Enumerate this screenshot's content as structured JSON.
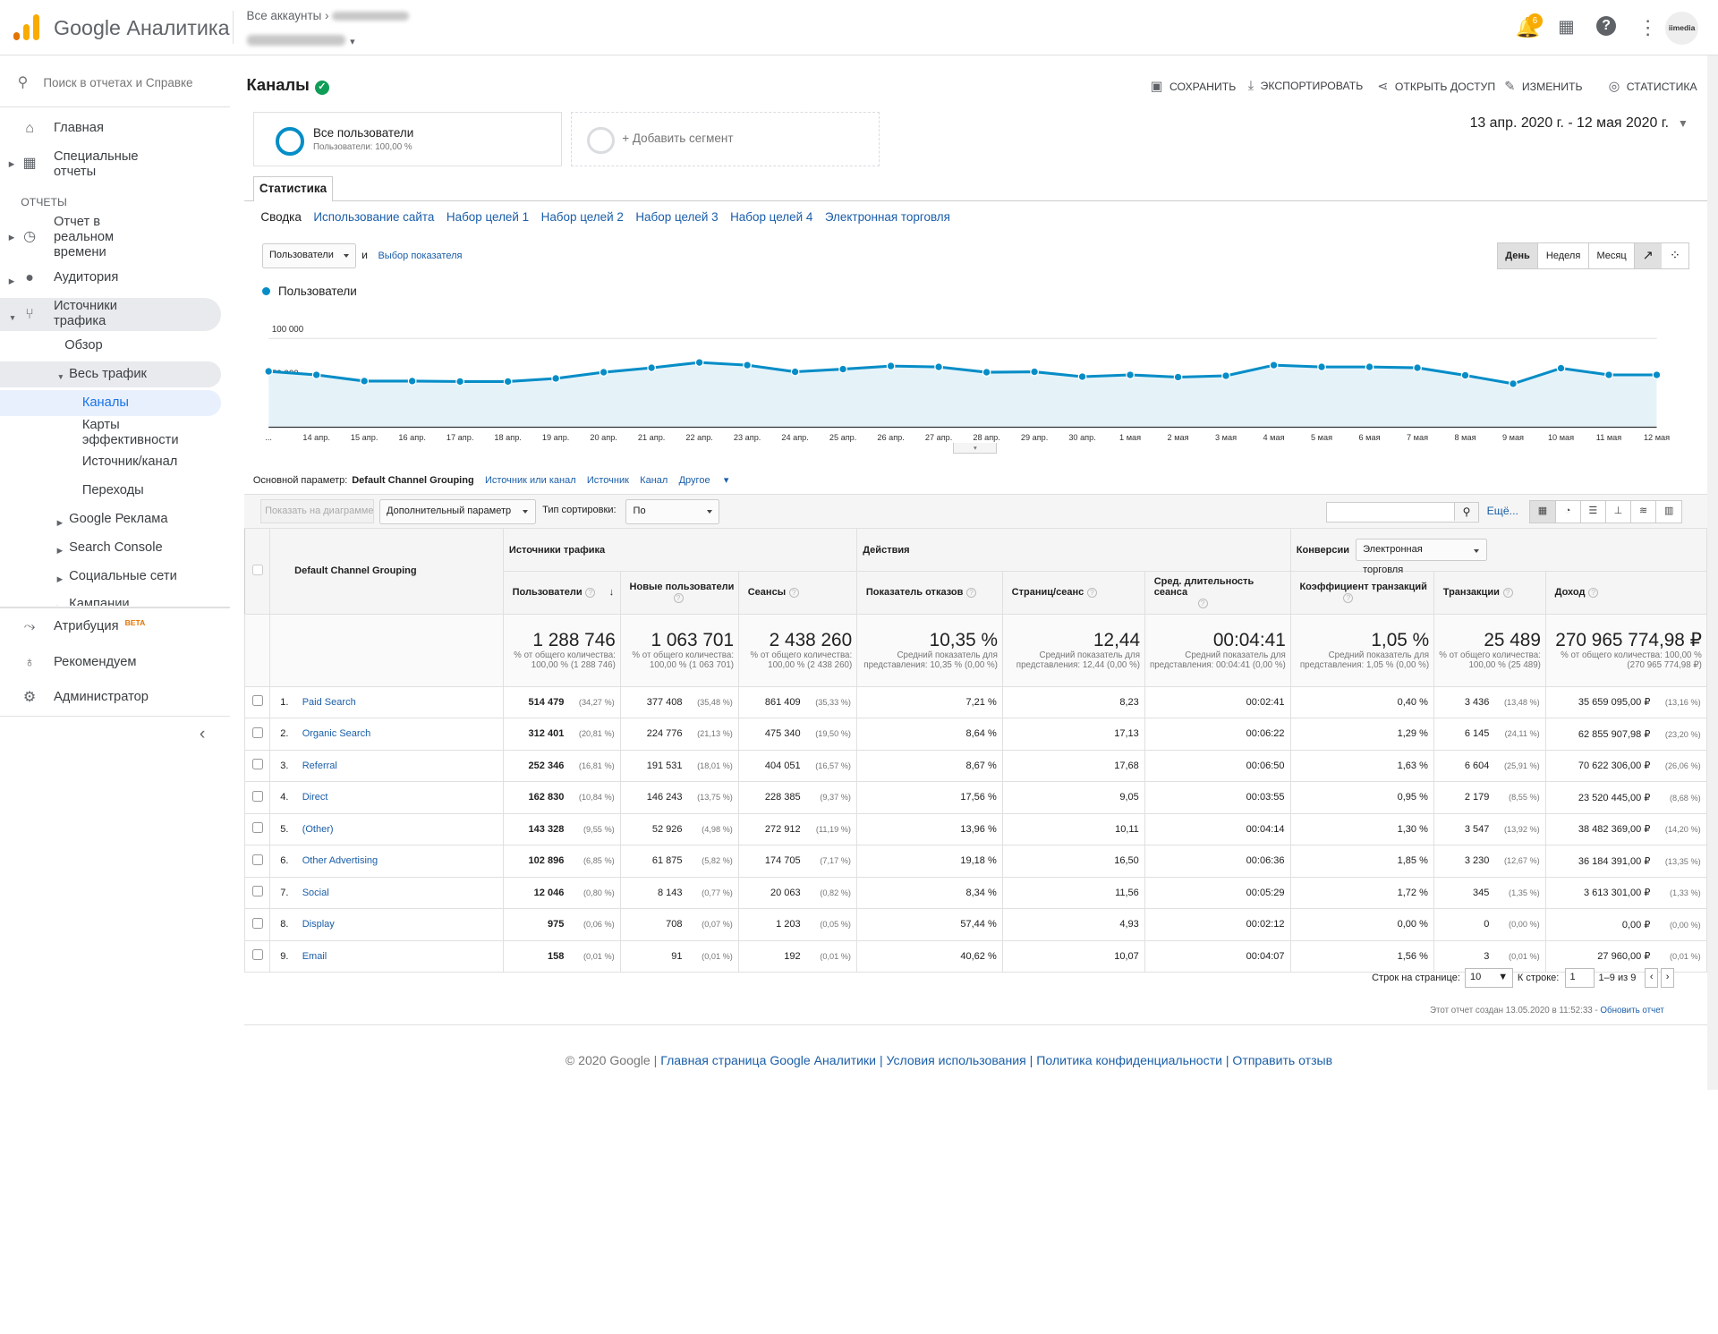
{
  "header": {
    "brand": "Google Аналитика",
    "breadcrumb": "Все аккаунты",
    "notif_count": "6",
    "avatar_text": "iimedia"
  },
  "sidebar": {
    "search_placeholder": "Поиск в отчетах и Справке",
    "reports_label": "ОТЧЕТЫ",
    "items": {
      "home": "Главная",
      "custom": "Специальные\nотчеты",
      "realtime": "Отчет в\nреальном\nвремени",
      "audience": "Аудитория",
      "acquisition": "Источники\nтрафика",
      "overview": "Обзор",
      "all_traffic": "Весь трафик",
      "channels": "Каналы",
      "treemaps": "Карты\nэффективности",
      "source_medium": "Источник/канал",
      "referrals": "Переходы",
      "google_ads": "Google Реклама",
      "search_console": "Search Console",
      "social": "Социальные сети",
      "campaigns": "Кампании",
      "attribution": "Атрибуция",
      "beta": "BETA",
      "discover": "Рекомендуем",
      "admin": "Администратор"
    }
  },
  "page": {
    "title": "Каналы",
    "toolbar": {
      "save": "СОХРАНИТЬ",
      "export": "ЭКСПОРТИРОВАТЬ",
      "share": "ОТКРЫТЬ ДОСТУП",
      "edit": "ИЗМЕНИТЬ",
      "insights": "СТАТИСТИКА"
    },
    "segment": {
      "name": "Все пользователи",
      "sub": "Пользователи: 100,00 %",
      "add": "+ Добавить сегмент"
    },
    "date_range": "13 апр. 2020 г. - 12 мая 2020 г.",
    "tab": "Статистика",
    "subtabs": [
      "Сводка",
      "Использование сайта",
      "Набор целей 1",
      "Набор целей 2",
      "Набор целей 3",
      "Набор целей 4",
      "Электронная торговля"
    ],
    "metric_dd": "Пользователи",
    "and": "и",
    "select_metric": "Выбор показателя",
    "periods": [
      "День",
      "Неделя",
      "Месяц"
    ],
    "primary_dim_label": "Основной параметр:",
    "primary_dims": [
      "Default Channel Grouping",
      "Источник или канал",
      "Источник",
      "Канал",
      "Другое"
    ],
    "plot_rows": "Показать на диаграмме",
    "secondary_dim": "Дополнительный параметр",
    "sort_type_label": "Тип сортировки:",
    "sort_type": "По умолчанию",
    "more": "Ещё..."
  },
  "chart_data": {
    "type": "area",
    "legend": "Пользователи",
    "yticks": [
      "100 000",
      "50 000"
    ],
    "ylim": [
      0,
      110000
    ],
    "x": [
      "13 апр.",
      "14 апр.",
      "15 апр.",
      "16 апр.",
      "17 апр.",
      "18 апр.",
      "19 апр.",
      "20 апр.",
      "21 апр.",
      "22 апр.",
      "23 апр.",
      "24 апр.",
      "25 апр.",
      "26 апр.",
      "27 апр.",
      "28 апр.",
      "29 апр.",
      "30 апр.",
      "1 мая",
      "2 мая",
      "3 мая",
      "4 мая",
      "5 мая",
      "6 мая",
      "7 мая",
      "8 мая",
      "9 мая",
      "10 мая",
      "11 мая",
      "12 мая"
    ],
    "xlabels": [
      "...",
      "14 апр.",
      "15 апр.",
      "16 апр.",
      "17 апр.",
      "18 апр.",
      "19 апр.",
      "20 апр.",
      "21 апр.",
      "22 апр.",
      "23 апр.",
      "24 апр.",
      "25 апр.",
      "26 апр.",
      "27 апр.",
      "28 апр.",
      "29 апр.",
      "30 апр.",
      "1 мая",
      "2 мая",
      "3 мая",
      "4 мая",
      "5 мая",
      "6 мая",
      "7 мая",
      "8 мая",
      "9 мая",
      "10 мая",
      "11 мая",
      "12 мая"
    ],
    "values": [
      63000,
      59000,
      52000,
      52000,
      51500,
      51500,
      55000,
      62000,
      67000,
      73000,
      70000,
      62500,
      65500,
      69000,
      68000,
      62000,
      62500,
      57000,
      59000,
      56500,
      58000,
      70000,
      68000,
      68000,
      67000,
      58500,
      49000,
      66500,
      59000,
      59000
    ]
  },
  "table": {
    "groups": {
      "acquisition": "Источники трафика",
      "behavior": "Действия",
      "conversions": "Конверсии",
      "conv_dd": "Электронная торговля"
    },
    "dim_header": "Default Channel Grouping",
    "columns": [
      "Пользователи",
      "Новые пользователи",
      "Сеансы",
      "Показатель отказов",
      "Страниц/сеанс",
      "Сред. длительность сеанса",
      "Коэффициент транзакций",
      "Транзакции",
      "Доход"
    ],
    "totals": [
      {
        "v": "1 288 746",
        "s": "% от общего количества: 100,00 % (1 288 746)"
      },
      {
        "v": "1 063 701",
        "s": "% от общего количества: 100,00 % (1 063 701)"
      },
      {
        "v": "2 438 260",
        "s": "% от общего количества: 100,00 % (2 438 260)"
      },
      {
        "v": "10,35 %",
        "s": "Средний показатель для представления: 10,35 % (0,00 %)"
      },
      {
        "v": "12,44",
        "s": "Средний показатель для представления: 12,44 (0,00 %)"
      },
      {
        "v": "00:04:41",
        "s": "Средний показатель для представления: 00:04:41 (0,00 %)"
      },
      {
        "v": "1,05 %",
        "s": "Средний показатель для представления: 1,05 % (0,00 %)"
      },
      {
        "v": "25 489",
        "s": "% от общего количества: 100,00 % (25 489)"
      },
      {
        "v": "270 965 774,98 ₽",
        "s": "% от общего количества: 100,00 % (270 965 774,98 ₽)"
      }
    ],
    "rows": [
      {
        "n": "1.",
        "name": "Paid Search",
        "c": [
          [
            "514 479",
            "(34,27 %)"
          ],
          [
            "377 408",
            "(35,48 %)"
          ],
          [
            "861 409",
            "(35,33 %)"
          ],
          [
            "7,21 %"
          ],
          [
            "8,23"
          ],
          [
            "00:02:41"
          ],
          [
            "0,40 %"
          ],
          [
            "3 436",
            "(13,48 %)"
          ],
          [
            "35 659 095,00 ₽",
            "(13,16 %)"
          ]
        ]
      },
      {
        "n": "2.",
        "name": "Organic Search",
        "c": [
          [
            "312 401",
            "(20,81 %)"
          ],
          [
            "224 776",
            "(21,13 %)"
          ],
          [
            "475 340",
            "(19,50 %)"
          ],
          [
            "8,64 %"
          ],
          [
            "17,13"
          ],
          [
            "00:06:22"
          ],
          [
            "1,29 %"
          ],
          [
            "6 145",
            "(24,11 %)"
          ],
          [
            "62 855 907,98 ₽",
            "(23,20 %)"
          ]
        ]
      },
      {
        "n": "3.",
        "name": "Referral",
        "c": [
          [
            "252 346",
            "(16,81 %)"
          ],
          [
            "191 531",
            "(18,01 %)"
          ],
          [
            "404 051",
            "(16,57 %)"
          ],
          [
            "8,67 %"
          ],
          [
            "17,68"
          ],
          [
            "00:06:50"
          ],
          [
            "1,63 %"
          ],
          [
            "6 604",
            "(25,91 %)"
          ],
          [
            "70 622 306,00 ₽",
            "(26,06 %)"
          ]
        ]
      },
      {
        "n": "4.",
        "name": "Direct",
        "c": [
          [
            "162 830",
            "(10,84 %)"
          ],
          [
            "146 243",
            "(13,75 %)"
          ],
          [
            "228 385",
            "(9,37 %)"
          ],
          [
            "17,56 %"
          ],
          [
            "9,05"
          ],
          [
            "00:03:55"
          ],
          [
            "0,95 %"
          ],
          [
            "2 179",
            "(8,55 %)"
          ],
          [
            "23 520 445,00 ₽",
            "(8,68 %)"
          ]
        ]
      },
      {
        "n": "5.",
        "name": "(Other)",
        "c": [
          [
            "143 328",
            "(9,55 %)"
          ],
          [
            "52 926",
            "(4,98 %)"
          ],
          [
            "272 912",
            "(11,19 %)"
          ],
          [
            "13,96 %"
          ],
          [
            "10,11"
          ],
          [
            "00:04:14"
          ],
          [
            "1,30 %"
          ],
          [
            "3 547",
            "(13,92 %)"
          ],
          [
            "38 482 369,00 ₽",
            "(14,20 %)"
          ]
        ]
      },
      {
        "n": "6.",
        "name": "Other Advertising",
        "c": [
          [
            "102 896",
            "(6,85 %)"
          ],
          [
            "61 875",
            "(5,82 %)"
          ],
          [
            "174 705",
            "(7,17 %)"
          ],
          [
            "19,18 %"
          ],
          [
            "16,50"
          ],
          [
            "00:06:36"
          ],
          [
            "1,85 %"
          ],
          [
            "3 230",
            "(12,67 %)"
          ],
          [
            "36 184 391,00 ₽",
            "(13,35 %)"
          ]
        ]
      },
      {
        "n": "7.",
        "name": "Social",
        "c": [
          [
            "12 046",
            "(0,80 %)"
          ],
          [
            "8 143",
            "(0,77 %)"
          ],
          [
            "20 063",
            "(0,82 %)"
          ],
          [
            "8,34 %"
          ],
          [
            "11,56"
          ],
          [
            "00:05:29"
          ],
          [
            "1,72 %"
          ],
          [
            "345",
            "(1,35 %)"
          ],
          [
            "3 613 301,00 ₽",
            "(1,33 %)"
          ]
        ]
      },
      {
        "n": "8.",
        "name": "Display",
        "c": [
          [
            "975",
            "(0,06 %)"
          ],
          [
            "708",
            "(0,07 %)"
          ],
          [
            "1 203",
            "(0,05 %)"
          ],
          [
            "57,44 %"
          ],
          [
            "4,93"
          ],
          [
            "00:02:12"
          ],
          [
            "0,00 %"
          ],
          [
            "0",
            "(0,00 %)"
          ],
          [
            "0,00 ₽",
            "(0,00 %)"
          ]
        ]
      },
      {
        "n": "9.",
        "name": "Email",
        "c": [
          [
            "158",
            "(0,01 %)"
          ],
          [
            "91",
            "(0,01 %)"
          ],
          [
            "192",
            "(0,01 %)"
          ],
          [
            "40,62 %"
          ],
          [
            "10,07"
          ],
          [
            "00:04:07"
          ],
          [
            "1,56 %"
          ],
          [
            "3",
            "(0,01 %)"
          ],
          [
            "27 960,00 ₽",
            "(0,01 %)"
          ]
        ]
      }
    ]
  },
  "pager": {
    "rows_label": "Строк на странице:",
    "rows": "10",
    "goto_label": "К строке:",
    "goto": "1",
    "range": "1–9 из 9"
  },
  "footer": {
    "created": "Этот отчет создан 13.05.2020 в 11:52:33 -",
    "refresh": "Обновить отчет",
    "copyright": "© 2020 Google |",
    "links": "Главная страница Google Аналитики | Условия использования | Политика конфиденциальности | Отправить отзыв"
  }
}
